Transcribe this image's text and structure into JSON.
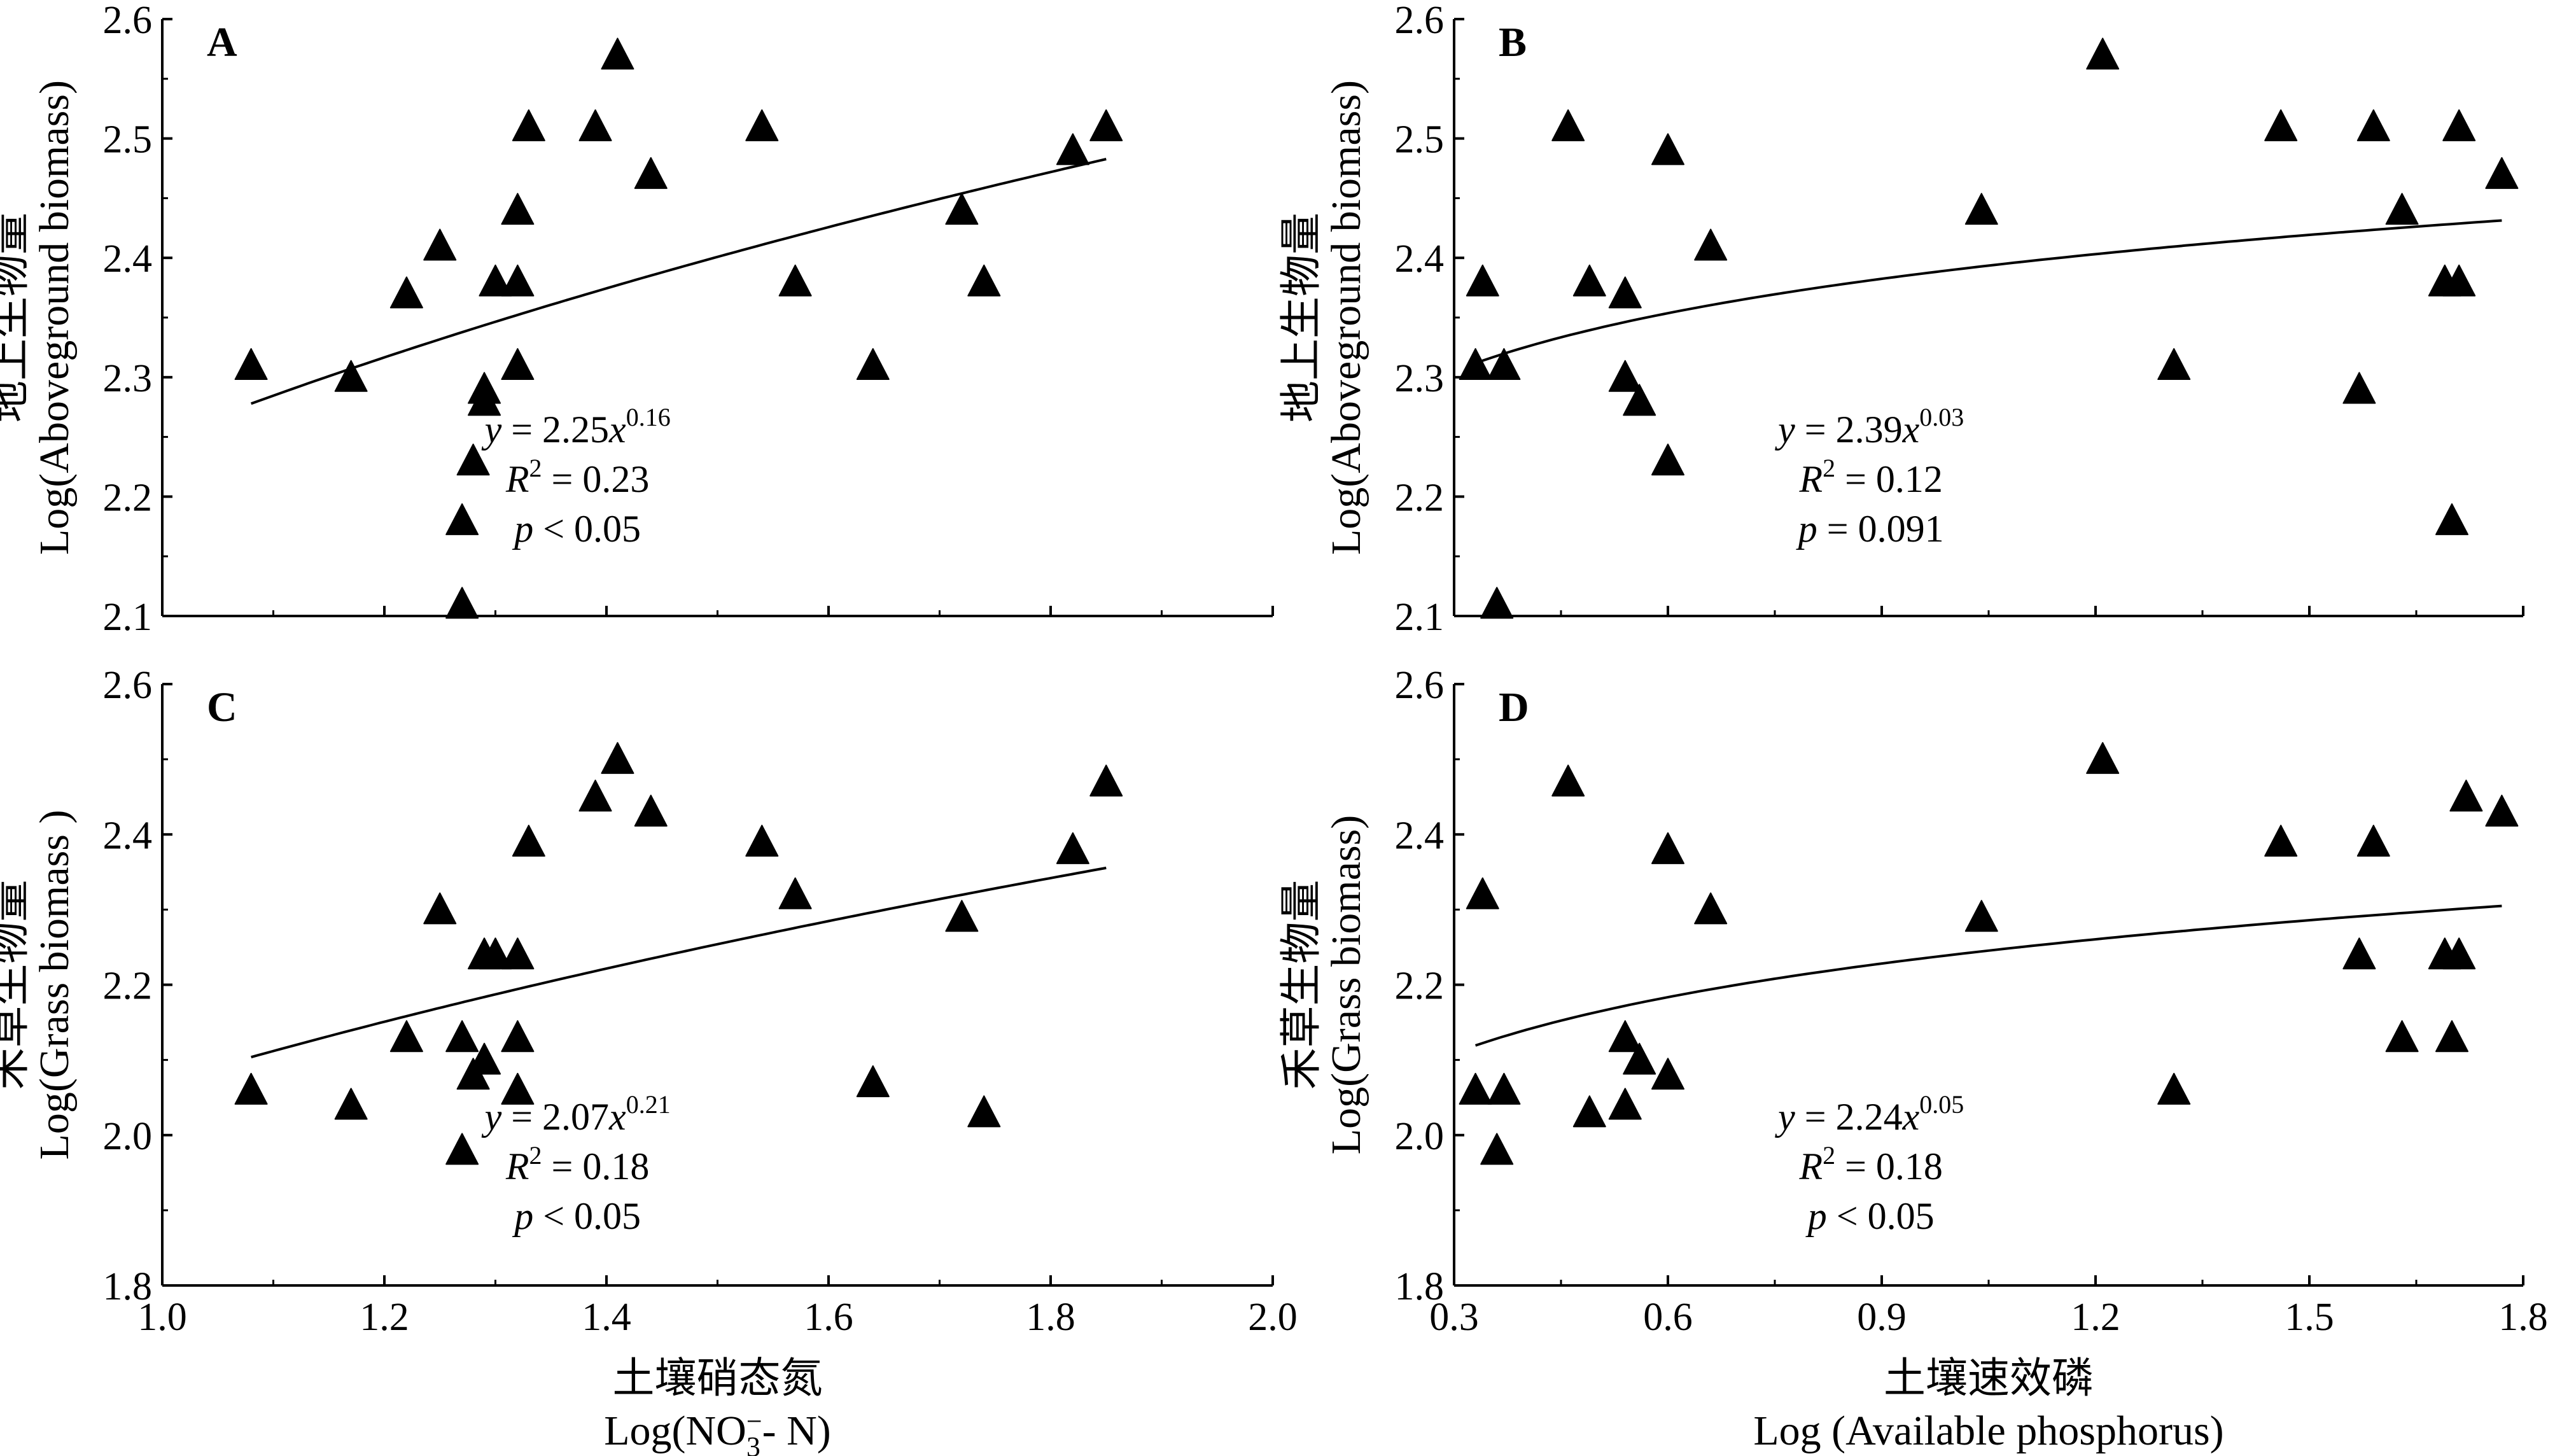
{
  "chart_data": [
    {
      "type": "scatter",
      "panel_label": "A",
      "ylabel_cn": "地上生物量",
      "ylabel": "Log(Aboveground biomass)",
      "xlabel_cn": "",
      "xlabel": "",
      "xlim": [
        1.0,
        2.0
      ],
      "ylim": [
        2.1,
        2.6
      ],
      "yticks": [
        "2.1",
        "2.2",
        "2.3",
        "2.4",
        "2.5",
        "2.6"
      ],
      "xticks": [],
      "x": [
        1.08,
        1.17,
        1.22,
        1.25,
        1.27,
        1.27,
        1.28,
        1.29,
        1.29,
        1.3,
        1.32,
        1.32,
        1.32,
        1.33,
        1.39,
        1.41,
        1.44,
        1.54,
        1.57,
        1.64,
        1.72,
        1.74,
        1.82,
        1.85
      ],
      "y": [
        2.31,
        2.3,
        2.37,
        2.41,
        2.11,
        2.18,
        2.23,
        2.28,
        2.29,
        2.38,
        2.31,
        2.38,
        2.44,
        2.51,
        2.51,
        2.57,
        2.47,
        2.51,
        2.38,
        2.31,
        2.44,
        2.38,
        2.49,
        2.51
      ],
      "fit": {
        "a": 2.25,
        "b": 0.16,
        "x_range": [
          1.08,
          1.85
        ]
      },
      "annotation": {
        "equation_prefix": "y = 2.25x",
        "exponent": "0.16",
        "r2_prefix": "R",
        "r2_suffix": " = 0.23",
        "p_prefix": "p",
        "p_suffix": " < 0.05"
      }
    },
    {
      "type": "scatter",
      "panel_label": "B",
      "ylabel_cn": "地上生物量",
      "ylabel": "Log(Aboveground biomass)",
      "xlabel_cn": "",
      "xlabel": "",
      "xlim": [
        0.3,
        1.8
      ],
      "ylim": [
        2.1,
        2.6
      ],
      "yticks": [
        "2.1",
        "2.2",
        "2.3",
        "2.4",
        "2.5",
        "2.6"
      ],
      "xticks": [],
      "x": [
        0.33,
        0.34,
        0.36,
        0.37,
        0.46,
        0.49,
        0.54,
        0.54,
        0.56,
        0.6,
        0.6,
        0.66,
        1.04,
        1.21,
        1.31,
        1.46,
        1.57,
        1.59,
        1.63,
        1.69,
        1.7,
        1.71,
        1.71,
        1.77
      ],
      "y": [
        2.31,
        2.38,
        2.11,
        2.31,
        2.51,
        2.38,
        2.37,
        2.3,
        2.28,
        2.49,
        2.23,
        2.41,
        2.44,
        2.57,
        2.31,
        2.51,
        2.29,
        2.51,
        2.44,
        2.38,
        2.18,
        2.38,
        2.51,
        2.47
      ],
      "fit": {
        "a": 2.39,
        "b": 0.03,
        "x_range": [
          0.33,
          1.77
        ]
      },
      "annotation": {
        "equation_prefix": "y = 2.39x",
        "exponent": "0.03",
        "r2_prefix": "R",
        "r2_suffix": " = 0.12",
        "p_prefix": "p",
        "p_suffix": " = 0.091"
      }
    },
    {
      "type": "scatter",
      "panel_label": "C",
      "ylabel_cn": "禾草生物量",
      "ylabel": "Log(Grass biomass )",
      "xlabel_cn": "土壤硝态氮",
      "xlabel": "Log(NO3- N)",
      "xlim": [
        1.0,
        2.0
      ],
      "ylim": [
        1.8,
        2.6
      ],
      "yticks": [
        "1.8",
        "2.0",
        "2.2",
        "2.4",
        "2.6"
      ],
      "xticks": [
        "1.0",
        "1.2",
        "1.4",
        "1.6",
        "1.8",
        "2.0"
      ],
      "x": [
        1.08,
        1.17,
        1.22,
        1.25,
        1.27,
        1.27,
        1.28,
        1.29,
        1.29,
        1.3,
        1.32,
        1.32,
        1.32,
        1.33,
        1.39,
        1.41,
        1.44,
        1.54,
        1.57,
        1.64,
        1.72,
        1.74,
        1.82,
        1.85
      ],
      "y": [
        2.06,
        2.04,
        2.13,
        2.3,
        1.98,
        2.13,
        2.08,
        2.1,
        2.24,
        2.24,
        2.06,
        2.13,
        2.24,
        2.39,
        2.45,
        2.5,
        2.43,
        2.39,
        2.32,
        2.07,
        2.29,
        2.03,
        2.38,
        2.47
      ],
      "fit": {
        "a": 2.07,
        "b": 0.21,
        "x_range": [
          1.08,
          1.85
        ]
      },
      "annotation": {
        "equation_prefix": "y = 2.07x",
        "exponent": "0.21",
        "r2_prefix": "R",
        "r2_suffix": " = 0.18",
        "p_prefix": "p",
        "p_suffix": " < 0.05"
      }
    },
    {
      "type": "scatter",
      "panel_label": "D",
      "ylabel_cn": "禾草生物量",
      "ylabel": "Log(Grass biomass)",
      "xlabel_cn": "土壤速效磷",
      "xlabel": "Log (Available phosphorus)",
      "xlim": [
        0.3,
        1.8
      ],
      "ylim": [
        1.8,
        2.6
      ],
      "yticks": [
        "1.8",
        "2.0",
        "2.2",
        "2.4",
        "2.6"
      ],
      "xticks": [
        "0.3",
        "0.6",
        "0.9",
        "1.2",
        "1.5",
        "1.8"
      ],
      "x": [
        0.33,
        0.34,
        0.36,
        0.37,
        0.46,
        0.49,
        0.54,
        0.54,
        0.56,
        0.6,
        0.6,
        0.66,
        1.04,
        1.21,
        1.31,
        1.46,
        1.57,
        1.59,
        1.63,
        1.69,
        1.7,
        1.71,
        1.72,
        1.77
      ],
      "y": [
        2.06,
        2.32,
        1.98,
        2.06,
        2.47,
        2.03,
        2.04,
        2.13,
        2.1,
        2.38,
        2.08,
        2.3,
        2.29,
        2.5,
        2.06,
        2.39,
        2.24,
        2.39,
        2.13,
        2.24,
        2.13,
        2.24,
        2.45,
        2.43
      ],
      "fit": {
        "a": 2.24,
        "b": 0.05,
        "x_range": [
          0.33,
          1.77
        ]
      },
      "annotation": {
        "equation_prefix": "y = 2.24x",
        "exponent": "0.05",
        "r2_prefix": "R",
        "r2_suffix": " = 0.18",
        "p_prefix": "p",
        "p_suffix": " < 0.05"
      }
    }
  ]
}
